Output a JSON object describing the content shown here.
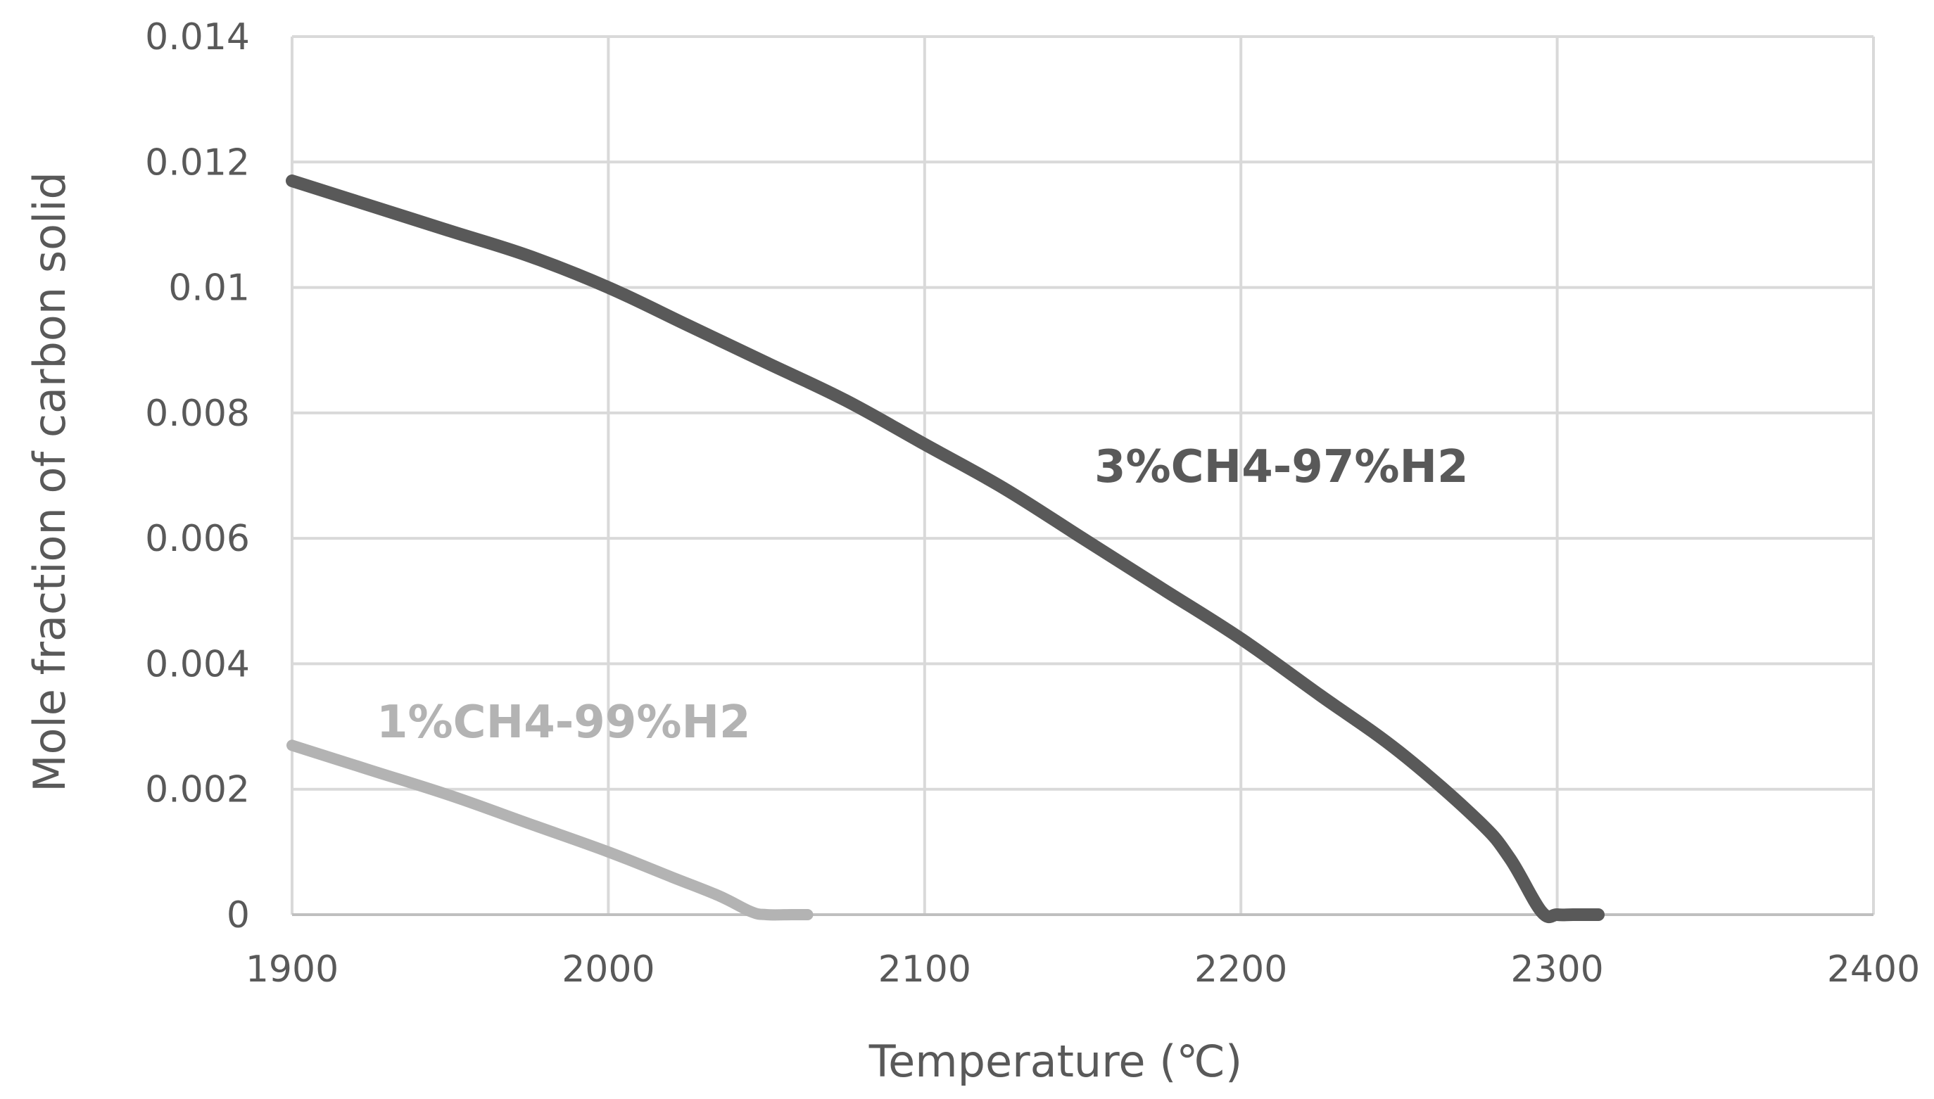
{
  "chart_data": {
    "type": "line",
    "title": "",
    "xlabel": "Temperature (℃)",
    "ylabel": "Mole fraction of carbon solid",
    "xlim": [
      1900,
      2400
    ],
    "ylim": [
      0,
      0.014
    ],
    "x_ticks": [
      "1900",
      "2000",
      "2100",
      "2200",
      "2300",
      "2400"
    ],
    "y_ticks": [
      "0",
      "0.002",
      "0.004",
      "0.006",
      "0.008",
      "0.01",
      "0.012",
      "0.014"
    ],
    "grid": true,
    "legend": "none (series labelled inline)",
    "series": [
      {
        "name": "3%CH4-97%H2",
        "color": "#595959",
        "x": [
          1900,
          1925,
          1950,
          1975,
          2000,
          2025,
          2050,
          2075,
          2100,
          2125,
          2150,
          2175,
          2200,
          2225,
          2250,
          2275,
          2285,
          2295,
          2300,
          2305,
          2313
        ],
        "y": [
          0.0117,
          0.0113,
          0.0109,
          0.0105,
          0.01,
          0.0094,
          0.0088,
          0.0082,
          0.0075,
          0.0068,
          0.006,
          0.0052,
          0.0044,
          0.0035,
          0.0026,
          0.0015,
          0.0009,
          5e-05,
          0.0,
          0.0,
          0.0
        ]
      },
      {
        "name": "1%CH4-99%H2",
        "color": "#b3b3b3",
        "x": [
          1900,
          1925,
          1950,
          1975,
          2000,
          2020,
          2035,
          2045,
          2050,
          2058,
          2063
        ],
        "y": [
          0.0027,
          0.0023,
          0.0019,
          0.00145,
          0.001,
          0.0006,
          0.0003,
          5e-05,
          0.0,
          0.0,
          0.0
        ]
      }
    ]
  }
}
